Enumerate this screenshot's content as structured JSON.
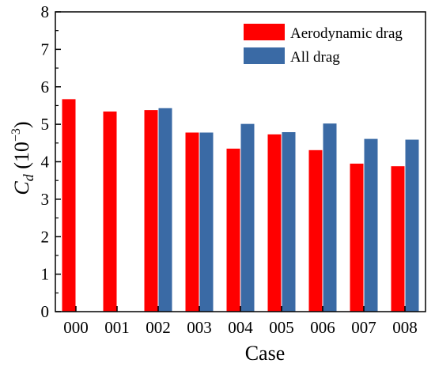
{
  "chart_data": {
    "type": "bar",
    "categories": [
      "000",
      "001",
      "002",
      "003",
      "004",
      "005",
      "006",
      "007",
      "008"
    ],
    "series": [
      {
        "name": "Aerodynamic drag",
        "color": "#ff0000",
        "values": [
          5.67,
          5.34,
          5.38,
          4.78,
          4.35,
          4.73,
          4.31,
          3.95,
          3.88
        ]
      },
      {
        "name": "All drag",
        "color": "#3a6aa5",
        "values": [
          null,
          null,
          5.43,
          4.78,
          5.01,
          4.79,
          5.02,
          4.61,
          4.59
        ]
      }
    ],
    "xlabel": "Case",
    "ylabel": "C",
    "ylabel_sub": "d",
    "ylabel_unit": " (10",
    "ylabel_exp": "−3",
    "ylabel_close": ")",
    "ylim": [
      0,
      8
    ],
    "yticks": [
      "0",
      "1",
      "2",
      "3",
      "4",
      "5",
      "6",
      "7",
      "8"
    ],
    "grid": false,
    "legend_position": "top-right"
  }
}
